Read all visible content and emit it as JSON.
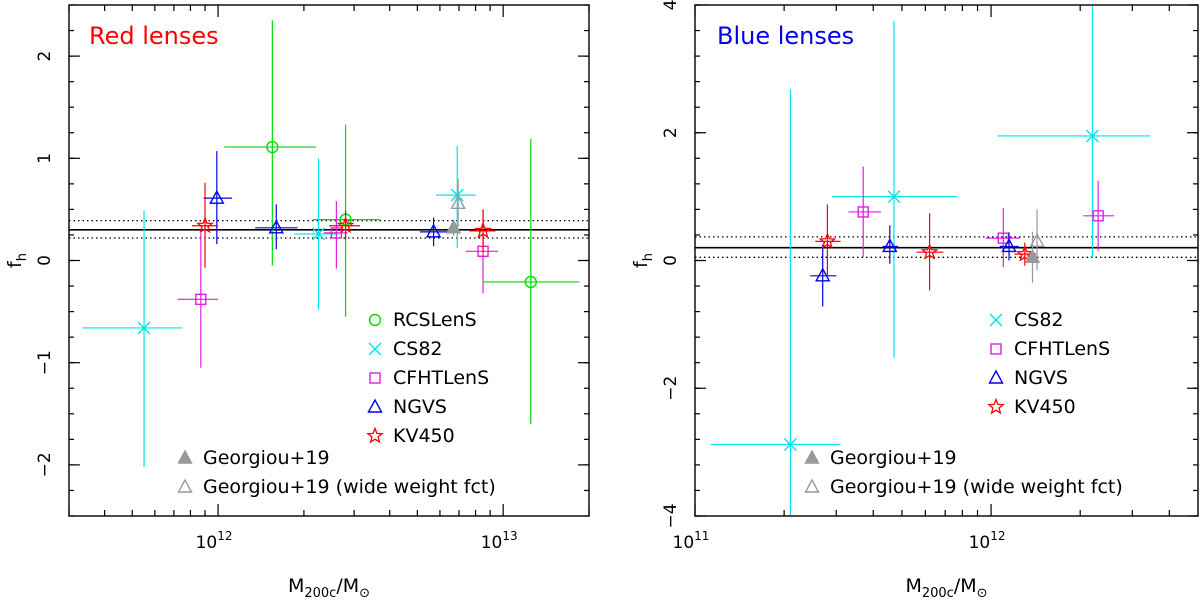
{
  "chart_data": [
    {
      "type": "scatter",
      "title": "Red lenses",
      "title_color": "#ff0000",
      "xlabel_main": "M",
      "xlabel_sub": "200c",
      "xlabel_sep": "/M",
      "xlabel_sun": "⊙",
      "ylabel_main": "f",
      "ylabel_sub": "h",
      "xscale": "log",
      "xlim": [
        300000000000.0,
        20000000000000.0
      ],
      "ylim": [
        -2.5,
        2.5
      ],
      "y_ticks": [
        -2,
        -1,
        0,
        1,
        2
      ],
      "y_tick_labels": [
        "−2",
        "−1",
        "0",
        "1",
        "2"
      ],
      "x_major_ticks": [
        1000000000000.0,
        10000000000000.0
      ],
      "x_tick_labels": [
        {
          "base": "10",
          "exp": "12"
        },
        {
          "base": "10",
          "exp": "13"
        }
      ],
      "x_minor_ticks": [
        300000000000.0,
        400000000000.0,
        500000000000.0,
        600000000000.0,
        700000000000.0,
        800000000000.0,
        900000000000.0,
        2000000000000.0,
        3000000000000.0,
        4000000000000.0,
        5000000000000.0,
        6000000000000.0,
        7000000000000.0,
        8000000000000.0,
        9000000000000.0,
        20000000000000.0
      ],
      "ref_line": 0.3,
      "ref_band": [
        0.22,
        0.39
      ],
      "series": [
        {
          "name": "RCSLenS",
          "marker": "circle",
          "color": "#00dd00",
          "points": [
            {
              "x": 1550000000000.0,
              "y": 1.11,
              "xlo": 1050000000000.0,
              "xhi": 2200000000000.0,
              "ylo": -0.05,
              "yhi": 2.35
            },
            {
              "x": 2800000000000.0,
              "y": 0.4,
              "xlo": 2150000000000.0,
              "xhi": 3700000000000.0,
              "ylo": -0.55,
              "yhi": 1.33
            },
            {
              "x": 12500000000000.0,
              "y": -0.21,
              "xlo": 8500000000000.0,
              "xhi": 18500000000000.0,
              "ylo": -1.6,
              "yhi": 1.19
            }
          ]
        },
        {
          "name": "CS82",
          "marker": "x",
          "color": "#00e5e5",
          "points": [
            {
              "x": 550000000000.0,
              "y": -0.66,
              "xlo": 335000000000.0,
              "xhi": 750000000000.0,
              "ylo": -2.02,
              "yhi": 0.49
            },
            {
              "x": 2250000000000.0,
              "y": 0.26,
              "xlo": 1850000000000.0,
              "xhi": 2650000000000.0,
              "ylo": -0.48,
              "yhi": 1.0
            },
            {
              "x": 6900000000000.0,
              "y": 0.64,
              "xlo": 5800000000000.0,
              "xhi": 8000000000000.0,
              "ylo": 0.12,
              "yhi": 1.12
            }
          ]
        },
        {
          "name": "CFHTLenS",
          "marker": "square",
          "color": "#e020e0",
          "points": [
            {
              "x": 870000000000.0,
              "y": -0.38,
              "xlo": 720000000000.0,
              "xhi": 1000000000000.0,
              "ylo": -1.05,
              "yhi": 0.27
            },
            {
              "x": 2600000000000.0,
              "y": 0.27,
              "xlo": 2350000000000.0,
              "xhi": 2850000000000.0,
              "ylo": -0.08,
              "yhi": 0.58
            },
            {
              "x": 8500000000000.0,
              "y": 0.09,
              "xlo": 7400000000000.0,
              "xhi": 9600000000000.0,
              "ylo": -0.32,
              "yhi": 0.5
            }
          ]
        },
        {
          "name": "NGVS",
          "marker": "triangle",
          "color": "#0000ee",
          "points": [
            {
              "x": 990000000000.0,
              "y": 0.61,
              "xlo": 890000000000.0,
              "xhi": 1120000000000.0,
              "ylo": 0.16,
              "yhi": 1.07
            },
            {
              "x": 1600000000000.0,
              "y": 0.32,
              "xlo": 1350000000000.0,
              "xhi": 1900000000000.0,
              "ylo": 0.11,
              "yhi": 0.55
            },
            {
              "x": 5700000000000.0,
              "y": 0.28,
              "xlo": 5100000000000.0,
              "xhi": 6400000000000.0,
              "ylo": 0.14,
              "yhi": 0.42
            }
          ]
        },
        {
          "name": "KV450",
          "marker": "star",
          "color": "#ff0000",
          "points": [
            {
              "x": 900000000000.0,
              "y": 0.34,
              "xlo": 810000000000.0,
              "xhi": 1000000000000.0,
              "ylo": -0.07,
              "yhi": 0.76
            },
            {
              "x": 2800000000000.0,
              "y": 0.34,
              "xlo": 2450000000000.0,
              "xhi": 3150000000000.0,
              "ylo": 0.2,
              "yhi": 0.49
            },
            {
              "x": 8500000000000.0,
              "y": 0.29,
              "xlo": 7600000000000.0,
              "xhi": 9400000000000.0,
              "ylo": 0.08,
              "yhi": 0.5
            }
          ]
        },
        {
          "name": "Georgiou+19",
          "marker": "triangle-filled",
          "color": "#999999",
          "points": [
            {
              "x": 6700000000000.0,
              "y": 0.32,
              "xlo": 6700000000000.0,
              "xhi": 6700000000000.0,
              "ylo": 0.24,
              "yhi": 0.4
            }
          ]
        },
        {
          "name": "Georgiou+19 (wide weight fct)",
          "marker": "triangle",
          "color": "#999999",
          "points": [
            {
              "x": 6950000000000.0,
              "y": 0.56,
              "xlo": 6950000000000.0,
              "xhi": 6950000000000.0,
              "ylo": 0.33,
              "yhi": 0.8
            }
          ]
        }
      ],
      "legend_upper": [
        "RCSLenS",
        "CS82",
        "CFHTLenS",
        "NGVS",
        "KV450"
      ],
      "legend_lower": [
        "Georgiou+19",
        "Georgiou+19 (wide weight fct)"
      ]
    },
    {
      "type": "scatter",
      "title": "Blue lenses",
      "title_color": "#0000ee",
      "xlabel_main": "M",
      "xlabel_sub": "200c",
      "xlabel_sep": "/M",
      "xlabel_sun": "⊙",
      "ylabel_main": "f",
      "ylabel_sub": "h",
      "xscale": "log",
      "xlim": [
        100000000000.0,
        5000000000000.0
      ],
      "ylim": [
        -4,
        4
      ],
      "y_ticks": [
        -4,
        -2,
        0,
        2,
        4
      ],
      "y_tick_labels": [
        "−4",
        "−2",
        "0",
        "2",
        "4"
      ],
      "x_major_ticks": [
        100000000000.0,
        1000000000000.0
      ],
      "x_tick_labels": [
        {
          "base": "10",
          "exp": "11"
        },
        {
          "base": "10",
          "exp": "12"
        }
      ],
      "x_minor_ticks": [
        200000000000.0,
        300000000000.0,
        400000000000.0,
        500000000000.0,
        600000000000.0,
        700000000000.0,
        800000000000.0,
        900000000000.0,
        2000000000000.0,
        3000000000000.0,
        4000000000000.0
      ],
      "ref_line": 0.2,
      "ref_band": [
        0.05,
        0.37
      ],
      "series": [
        {
          "name": "CS82",
          "marker": "x",
          "color": "#00e5e5",
          "points": [
            {
              "x": 210000000000.0,
              "y": -2.88,
              "xlo": 113000000000.0,
              "xhi": 310000000000.0,
              "ylo": -4.0,
              "yhi": 2.68
            },
            {
              "x": 470000000000.0,
              "y": 1.0,
              "xlo": 290000000000.0,
              "xhi": 770000000000.0,
              "ylo": -1.52,
              "yhi": 3.75
            },
            {
              "x": 2200000000000.0,
              "y": 1.95,
              "xlo": 1050000000000.0,
              "xhi": 3450000000000.0,
              "ylo": 0.05,
              "yhi": 4.0
            }
          ]
        },
        {
          "name": "CFHTLenS",
          "marker": "square",
          "color": "#e020e0",
          "points": [
            {
              "x": 370000000000.0,
              "y": 0.76,
              "xlo": 330000000000.0,
              "xhi": 425000000000.0,
              "ylo": 0.05,
              "yhi": 1.47
            },
            {
              "x": 1100000000000.0,
              "y": 0.35,
              "xlo": 960000000000.0,
              "xhi": 1250000000000.0,
              "ylo": -0.1,
              "yhi": 0.82
            },
            {
              "x": 2300000000000.0,
              "y": 0.7,
              "xlo": 2050000000000.0,
              "xhi": 2600000000000.0,
              "ylo": 0.15,
              "yhi": 1.25
            }
          ]
        },
        {
          "name": "NGVS",
          "marker": "triangle",
          "color": "#0000ee",
          "points": [
            {
              "x": 270000000000.0,
              "y": -0.24,
              "xlo": 245000000000.0,
              "xhi": 300000000000.0,
              "ylo": -0.72,
              "yhi": 0.25
            },
            {
              "x": 455000000000.0,
              "y": 0.22,
              "xlo": 430000000000.0,
              "xhi": 485000000000.0,
              "ylo": -0.05,
              "yhi": 0.55
            },
            {
              "x": 1150000000000.0,
              "y": 0.22,
              "xlo": 1070000000000.0,
              "xhi": 1240000000000.0,
              "ylo": 0.0,
              "yhi": 0.44
            }
          ]
        },
        {
          "name": "KV450",
          "marker": "star",
          "color": "#ff0000",
          "points": [
            {
              "x": 280000000000.0,
              "y": 0.3,
              "xlo": 255000000000.0,
              "xhi": 310000000000.0,
              "ylo": -0.25,
              "yhi": 0.88
            },
            {
              "x": 620000000000.0,
              "y": 0.13,
              "xlo": 560000000000.0,
              "xhi": 690000000000.0,
              "ylo": -0.47,
              "yhi": 0.74
            },
            {
              "x": 1300000000000.0,
              "y": 0.1,
              "xlo": 1200000000000.0,
              "xhi": 1420000000000.0,
              "ylo": -0.08,
              "yhi": 0.28
            }
          ]
        },
        {
          "name": "Georgiou+19",
          "marker": "triangle-filled",
          "color": "#999999",
          "points": [
            {
              "x": 1380000000000.0,
              "y": 0.05,
              "xlo": 1380000000000.0,
              "xhi": 1380000000000.0,
              "ylo": -0.35,
              "yhi": 0.45
            }
          ]
        },
        {
          "name": "Georgiou+19 (wide weight fct)",
          "marker": "triangle",
          "color": "#999999",
          "points": [
            {
              "x": 1430000000000.0,
              "y": 0.3,
              "xlo": 1430000000000.0,
              "xhi": 1430000000000.0,
              "ylo": -0.15,
              "yhi": 0.8
            }
          ]
        }
      ],
      "legend_upper": [
        "CS82",
        "CFHTLenS",
        "NGVS",
        "KV450"
      ],
      "legend_lower": [
        "Georgiou+19",
        "Georgiou+19 (wide weight fct)"
      ]
    }
  ]
}
